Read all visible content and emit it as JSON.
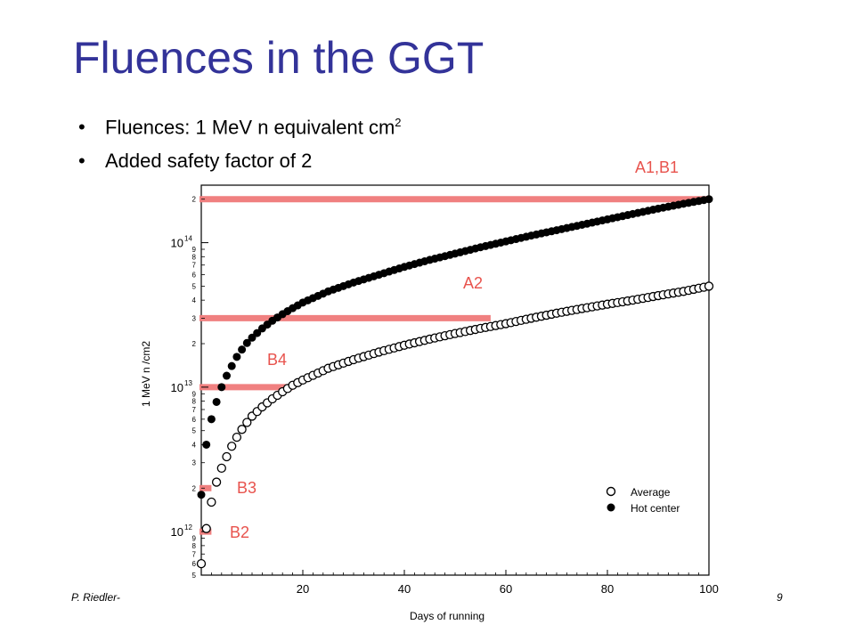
{
  "slide": {
    "title": "Fluences in the GGT",
    "bullets": [
      {
        "text": "Fluences: 1 MeV n equivalent cm",
        "sup": "2"
      },
      {
        "text": "Added safety factor of 2",
        "sup": ""
      }
    ],
    "footer_left": "P. Riedler-",
    "page_number": "9"
  },
  "chart_data": {
    "type": "scatter",
    "xlabel": "Days of running",
    "ylabel": "1 MeV n /cm2",
    "xlim": [
      0,
      100
    ],
    "ylim": [
      500000000000.0,
      250000000000000.0
    ],
    "ylog": true,
    "x_ticks": [
      20,
      40,
      60,
      80,
      100
    ],
    "y_decade_labels": [
      {
        "value": 1000000000000.0,
        "base": "10",
        "exp": "12"
      },
      {
        "value": 10000000000000.0,
        "base": "10",
        "exp": "13"
      },
      {
        "value": 100000000000000.0,
        "base": "10",
        "exp": "14"
      }
    ],
    "legend_position": "bottom-right",
    "series": [
      {
        "name": "Average",
        "marker": "open-circle",
        "x": [
          0,
          1,
          2,
          3,
          4,
          5,
          6,
          7,
          8,
          9,
          10,
          12,
          14,
          16,
          18,
          20,
          25,
          30,
          35,
          40,
          45,
          50,
          55,
          60,
          65,
          70,
          75,
          80,
          85,
          90,
          95,
          100
        ],
        "y": [
          600000000000.0,
          1050000000000.0,
          1600000000000.0,
          2200000000000.0,
          2750000000000.0,
          3300000000000.0,
          3900000000000.0,
          4500000000000.0,
          5100000000000.0,
          5700000000000.0,
          6300000000000.0,
          7300000000000.0,
          8300000000000.0,
          9300000000000.0,
          10300000000000.0,
          11200000000000.0,
          13500000000000.0,
          15500000000000.0,
          17500000000000.0,
          19500000000000.0,
          21500000000000.0,
          23500000000000.0,
          25500000000000.0,
          27500000000000.0,
          30000000000000.0,
          32500000000000.0,
          35000000000000.0,
          37500000000000.0,
          40000000000000.0,
          43000000000000.0,
          46000000000000.0,
          50000000000000.0
        ]
      },
      {
        "name": "Hot center",
        "marker": "filled-circle",
        "x": [
          0,
          1,
          2,
          3,
          4,
          5,
          6,
          7,
          8,
          9,
          10,
          12,
          14,
          16,
          18,
          20,
          25,
          30,
          35,
          40,
          45,
          50,
          55,
          60,
          65,
          70,
          75,
          80,
          85,
          90,
          95,
          100
        ],
        "y": [
          1800000000000.0,
          4000000000000.0,
          6000000000000.0,
          7900000000000.0,
          10000000000000.0,
          12000000000000.0,
          14000000000000.0,
          16200000000000.0,
          18200000000000.0,
          20200000000000.0,
          22000000000000.0,
          25500000000000.0,
          28800000000000.0,
          32000000000000.0,
          35200000000000.0,
          38500000000000.0,
          46000000000000.0,
          53000000000000.0,
          60000000000000.0,
          68000000000000.0,
          76000000000000.0,
          84000000000000.0,
          93000000000000.0,
          102000000000000.0,
          112000000000000.0,
          122000000000000.0,
          133000000000000.0,
          145000000000000.0,
          158000000000000.0,
          172000000000000.0,
          186000000000000.0,
          200000000000000.0
        ]
      }
    ],
    "threshold_lines": [
      {
        "label": "A1,B1",
        "y": 200000000000000.0,
        "x_end": 100
      },
      {
        "label": "A2",
        "y": 30000000000000.0,
        "x_end": 57
      },
      {
        "label": "B4",
        "y": 10000000000000.0,
        "x_end": 18
      },
      {
        "label": "B3",
        "y": 2000000000000.0,
        "x_end": 2
      },
      {
        "label": "B2",
        "y": 1000000000000.0,
        "x_end": 2
      }
    ],
    "threshold_color": "#f08080",
    "annotation_color": "#e8534d"
  }
}
